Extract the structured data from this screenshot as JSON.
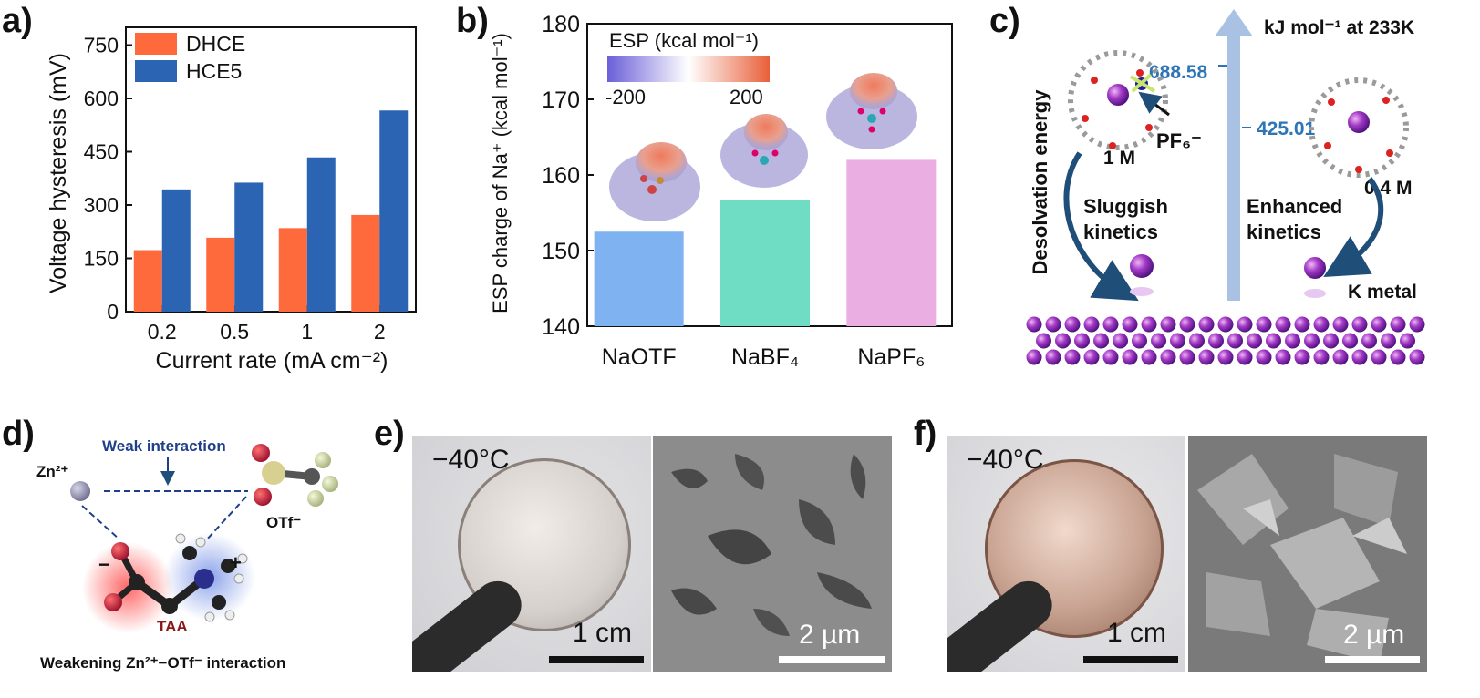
{
  "panels": {
    "a": {
      "label": "a)"
    },
    "b": {
      "label": "b)"
    },
    "c": {
      "label": "c)"
    },
    "d": {
      "label": "d)"
    },
    "e": {
      "label": "e)"
    },
    "f": {
      "label": "f)"
    }
  },
  "chart_data": [
    {
      "type": "bar",
      "categories": [
        "0.2",
        "0.5",
        "1",
        "2"
      ],
      "series": [
        {
          "name": "DHCE",
          "values": [
            173,
            208,
            235,
            272
          ],
          "color": "#FF6A3D"
        },
        {
          "name": "HCE5",
          "values": [
            344,
            363,
            434,
            566
          ],
          "color": "#2A64B3"
        }
      ],
      "xlabel": "Current rate (mA cm⁻²)",
      "ylabel": "Voltage hysteresis (mV)",
      "ylim": [
        0,
        800
      ],
      "yticks": [
        "0",
        "150",
        "300",
        "450",
        "600",
        "750"
      ],
      "legend": "top-left",
      "grid": false
    },
    {
      "type": "bar",
      "categories": [
        "NaOTF",
        "NaBF₄",
        "NaPF₆"
      ],
      "values": [
        152.5,
        156.7,
        162.0
      ],
      "colors": [
        "#7FB2F0",
        "#6EDDC4",
        "#EBAEE2"
      ],
      "ylabel": "ESP charge of Na⁺ (kcal mol⁻¹)",
      "ylim": [
        140,
        180
      ],
      "yticks": [
        "140",
        "150",
        "160",
        "170",
        "180"
      ],
      "colorbar": {
        "title": "ESP (kcal mol⁻¹)",
        "min_label": "-200",
        "max_label": "200"
      },
      "grid": false
    }
  ],
  "panel_c": {
    "header": "kJ mol⁻¹ at 233K",
    "value_high": "688.58",
    "value_low": "425.01",
    "y_axis_label": "Desolvation energy",
    "left_conc": "1 M",
    "right_conc": "0.4 M",
    "anion_label": "PF₆⁻",
    "left_kinetics": [
      "Sluggish",
      "kinetics"
    ],
    "right_kinetics": [
      "Enhanced",
      "kinetics"
    ],
    "metal_label": "K metal"
  },
  "panel_d": {
    "zn_label": "Zn²⁺",
    "weak_label": "Weak interaction",
    "otf_label": "OTf⁻",
    "minus": "−",
    "plus": "+",
    "taa_label": "TAA",
    "caption": "Weakening Zn²⁺−OTf⁻ interaction"
  },
  "panel_e": {
    "temp": "−40°C",
    "scale_photo": "1 cm",
    "scale_sem": "2 µm"
  },
  "panel_f": {
    "temp": "−40°C",
    "scale_photo": "1 cm",
    "scale_sem": "2 µm"
  }
}
